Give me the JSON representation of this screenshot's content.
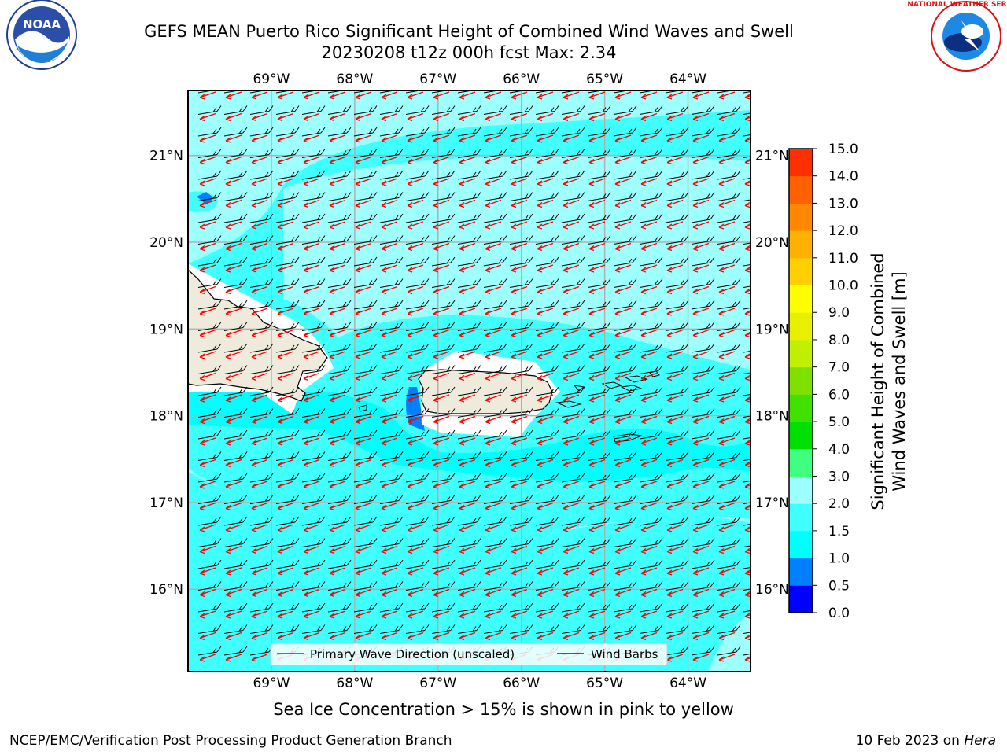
{
  "title": {
    "line1": "GEFS MEAN Puerto Rico Significant Height of Combined Wind Waves and Swell",
    "line2": "20230208 t12z 000h fcst   Max: 2.34"
  },
  "logos": {
    "left": {
      "icon": "noaa-logo-icon",
      "text": "NOAA"
    },
    "right": {
      "icon": "nws-logo-icon",
      "text": "NATIONAL WEATHER SERVICE"
    }
  },
  "map": {
    "lon_labels": [
      "69°W",
      "68°W",
      "67°W",
      "66°W",
      "65°W",
      "64°W"
    ],
    "lat_labels": [
      "21°N",
      "20°N",
      "19°N",
      "18°N",
      "17°N",
      "16°N"
    ],
    "lon_values": [
      -69,
      -68,
      -67,
      -66,
      -65,
      -64
    ],
    "lat_values": [
      21,
      20,
      19,
      18,
      17,
      16
    ],
    "lon_range": [
      -70.0,
      -63.25
    ],
    "lat_range": [
      15.05,
      21.75
    ],
    "land_color": "#efebdc",
    "ocean_colors": {
      "0.5-1.0": "#0080ff",
      "1.0-1.5": "#00ffff",
      "1.5-2.0": "#40ffff",
      "2.0-3.0": "#9effff"
    }
  },
  "legend": {
    "wave_direction": "Primary Wave Direction (unscaled)",
    "wind_barbs": "Wind Barbs",
    "wave_color": "#ff0000",
    "barb_color": "#000000"
  },
  "colorbar": {
    "label_line1": "Significant Height of Combined",
    "label_line2": "Wind Waves and Swell [m]",
    "ticks": [
      "0.0",
      "0.5",
      "1.0",
      "1.5",
      "2.0",
      "3.0",
      "4.0",
      "5.0",
      "6.0",
      "7.0",
      "8.0",
      "9.0",
      "10.0",
      "11.0",
      "12.0",
      "13.0",
      "14.0",
      "15.0"
    ],
    "colors": [
      "#0000ff",
      "#0080ff",
      "#00ffff",
      "#40ffff",
      "#9effff",
      "#40ff80",
      "#00e000",
      "#40e000",
      "#80e000",
      "#c0f000",
      "#e8f000",
      "#ffff00",
      "#ffd000",
      "#ffb000",
      "#ff8800",
      "#ff6000",
      "#ff3000",
      "#ff0000"
    ]
  },
  "footer": {
    "ice_note": "Sea Ice Concentration > 15% is shown in pink to yellow",
    "branch": "NCEP/EMC/Verification Post Processing Product Generation Branch",
    "date": "10 Feb 2023 on ",
    "machine": "Hera"
  }
}
